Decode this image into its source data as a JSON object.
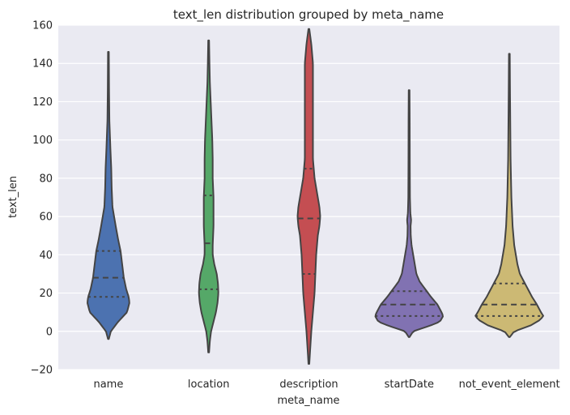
{
  "chart_data": {
    "type": "violin",
    "title": "text_len distribution grouped by meta_name",
    "xlabel": "meta_name",
    "ylabel": "text_len",
    "ylim": [
      -20,
      160
    ],
    "yticks": [
      -20,
      0,
      20,
      40,
      60,
      80,
      100,
      120,
      140,
      160
    ],
    "ytick_labels": [
      "−20",
      "0",
      "20",
      "40",
      "60",
      "80",
      "100",
      "120",
      "140",
      "160"
    ],
    "grid": true,
    "categories": [
      "name",
      "location",
      "description",
      "startDate",
      "not_event_element"
    ],
    "colors": [
      "#4C72B0",
      "#55A868",
      "#C44E52",
      "#8172B2",
      "#CCB974"
    ],
    "background_color": "#EAEAF2",
    "series": [
      {
        "category": "name",
        "color": "#4C72B0",
        "min": -4,
        "max": 146,
        "q1": 18,
        "median": 28,
        "q3": 42,
        "profile": [
          [
            -4,
            0.5
          ],
          [
            0,
            3
          ],
          [
            5,
            12
          ],
          [
            10,
            23
          ],
          [
            15,
            26
          ],
          [
            18,
            25
          ],
          [
            22,
            22
          ],
          [
            28,
            19
          ],
          [
            35,
            17
          ],
          [
            42,
            15
          ],
          [
            48,
            12
          ],
          [
            55,
            9
          ],
          [
            60,
            7
          ],
          [
            65,
            5
          ],
          [
            75,
            4
          ],
          [
            85,
            3.5
          ],
          [
            95,
            2.5
          ],
          [
            110,
            1.2
          ],
          [
            125,
            0.8
          ],
          [
            146,
            0.5
          ]
        ]
      },
      {
        "category": "location",
        "color": "#55A868",
        "min": -11,
        "max": 152,
        "q1": 22,
        "median": 46,
        "q3": 71,
        "profile": [
          [
            -11,
            0.5
          ],
          [
            -5,
            1.5
          ],
          [
            0,
            3
          ],
          [
            5,
            6
          ],
          [
            10,
            9
          ],
          [
            15,
            11
          ],
          [
            20,
            12
          ],
          [
            25,
            11.5
          ],
          [
            30,
            10
          ],
          [
            35,
            7
          ],
          [
            40,
            5
          ],
          [
            45,
            5
          ],
          [
            50,
            5.5
          ],
          [
            55,
            6
          ],
          [
            60,
            6
          ],
          [
            65,
            6
          ],
          [
            70,
            6
          ],
          [
            75,
            5.5
          ],
          [
            80,
            5
          ],
          [
            90,
            5
          ],
          [
            100,
            4.5
          ],
          [
            110,
            3.5
          ],
          [
            120,
            2.5
          ],
          [
            130,
            1.5
          ],
          [
            140,
            1
          ],
          [
            152,
            0.5
          ]
        ]
      },
      {
        "category": "description",
        "color": "#C44E52",
        "min": -17,
        "max": 158,
        "q1": 30,
        "median": 59,
        "q3": 85,
        "profile": [
          [
            -17,
            0.5
          ],
          [
            -10,
            1.5
          ],
          [
            0,
            3
          ],
          [
            10,
            5
          ],
          [
            20,
            7
          ],
          [
            30,
            8
          ],
          [
            40,
            9
          ],
          [
            50,
            11
          ],
          [
            55,
            13
          ],
          [
            60,
            14
          ],
          [
            65,
            13
          ],
          [
            70,
            11
          ],
          [
            75,
            9
          ],
          [
            80,
            7
          ],
          [
            85,
            6
          ],
          [
            90,
            5
          ],
          [
            100,
            5
          ],
          [
            110,
            5
          ],
          [
            120,
            5
          ],
          [
            130,
            5
          ],
          [
            140,
            5
          ],
          [
            150,
            3
          ],
          [
            158,
            0.5
          ]
        ]
      },
      {
        "category": "startDate",
        "color": "#8172B2",
        "min": -3,
        "max": 126,
        "q1": 8,
        "median": 14,
        "q3": 21,
        "profile": [
          [
            -3,
            0.5
          ],
          [
            0,
            5
          ],
          [
            3,
            26
          ],
          [
            5,
            38
          ],
          [
            8,
            42
          ],
          [
            10,
            40
          ],
          [
            14,
            35
          ],
          [
            18,
            27
          ],
          [
            22,
            20
          ],
          [
            26,
            13
          ],
          [
            30,
            9
          ],
          [
            35,
            7
          ],
          [
            40,
            5
          ],
          [
            45,
            3
          ],
          [
            50,
            2
          ],
          [
            55,
            1.8
          ],
          [
            58,
            2.5
          ],
          [
            62,
            1.5
          ],
          [
            70,
            1
          ],
          [
            90,
            0.8
          ],
          [
            110,
            0.7
          ],
          [
            126,
            0.5
          ]
        ]
      },
      {
        "category": "not_event_element",
        "color": "#CCB974",
        "min": -3,
        "max": 145,
        "q1": 8,
        "median": 14,
        "q3": 25,
        "profile": [
          [
            -3,
            0.5
          ],
          [
            0,
            6
          ],
          [
            3,
            26
          ],
          [
            6,
            38
          ],
          [
            8,
            42
          ],
          [
            10,
            39
          ],
          [
            14,
            34
          ],
          [
            18,
            28
          ],
          [
            22,
            23
          ],
          [
            26,
            18
          ],
          [
            30,
            13
          ],
          [
            35,
            10
          ],
          [
            40,
            8
          ],
          [
            45,
            6
          ],
          [
            50,
            5
          ],
          [
            55,
            4
          ],
          [
            60,
            3.5
          ],
          [
            70,
            2.5
          ],
          [
            80,
            2
          ],
          [
            90,
            1.5
          ],
          [
            100,
            1.3
          ],
          [
            110,
            1.1
          ],
          [
            125,
            0.8
          ],
          [
            145,
            0.5
          ]
        ]
      }
    ]
  }
}
